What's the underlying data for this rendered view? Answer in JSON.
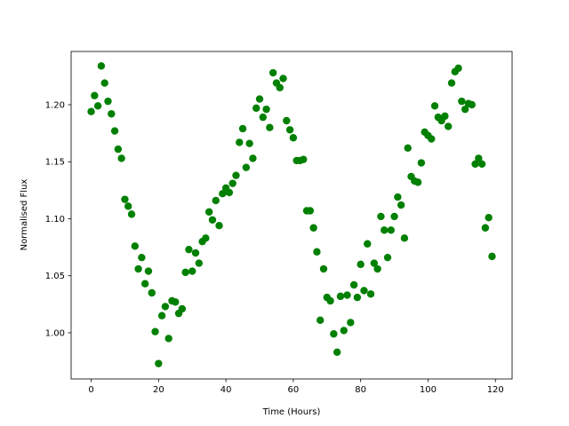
{
  "chart_data": {
    "type": "scatter",
    "xlabel": "Time (Hours)",
    "ylabel": "Normalised Flux",
    "color": "#008000",
    "x": [
      0,
      1,
      2,
      3,
      4,
      5,
      6,
      7,
      8,
      9,
      10,
      11,
      12,
      13,
      14,
      15,
      16,
      17,
      18,
      19,
      20,
      21,
      22,
      23,
      24,
      25,
      26,
      27,
      28,
      29,
      30,
      31,
      32,
      33,
      34,
      35,
      36,
      37,
      38,
      39,
      40,
      41,
      42,
      43,
      44,
      45,
      46,
      47,
      48,
      49,
      50,
      51,
      52,
      53,
      54,
      55,
      56,
      57,
      58,
      59,
      60,
      61,
      62,
      63,
      64,
      65,
      66,
      67,
      68,
      69,
      70,
      71,
      72,
      73,
      74,
      75,
      76,
      77,
      78,
      79,
      80,
      81,
      82,
      83,
      84,
      85,
      86,
      87,
      88,
      89,
      90,
      91,
      92,
      93,
      94,
      95,
      96,
      97,
      98,
      99,
      100,
      101,
      102,
      103,
      104,
      105,
      106,
      107,
      108,
      109,
      110,
      111,
      112,
      113,
      114,
      115,
      116,
      117,
      118,
      119
    ],
    "values": [
      1.194,
      1.208,
      1.199,
      1.234,
      1.219,
      1.203,
      1.192,
      1.177,
      1.161,
      1.153,
      1.117,
      1.111,
      1.104,
      1.076,
      1.056,
      1.066,
      1.043,
      1.054,
      1.035,
      1.001,
      0.973,
      1.015,
      1.023,
      0.995,
      1.028,
      1.027,
      1.017,
      1.021,
      1.053,
      1.073,
      1.054,
      1.07,
      1.061,
      1.08,
      1.083,
      1.106,
      1.099,
      1.116,
      1.094,
      1.122,
      1.127,
      1.123,
      1.131,
      1.138,
      1.167,
      1.179,
      1.145,
      1.166,
      1.153,
      1.197,
      1.205,
      1.189,
      1.196,
      1.18,
      1.228,
      1.219,
      1.215,
      1.223,
      1.186,
      1.178,
      1.171,
      1.151,
      1.151,
      1.152,
      1.107,
      1.107,
      1.092,
      1.071,
      1.011,
      1.056,
      1.031,
      1.028,
      0.999,
      0.983,
      1.032,
      1.002,
      1.033,
      1.009,
      1.042,
      1.031,
      1.06,
      1.037,
      1.078,
      1.034,
      1.061,
      1.056,
      1.102,
      1.09,
      1.066,
      1.09,
      1.102,
      1.119,
      1.112,
      1.083,
      1.162,
      1.137,
      1.133,
      1.132,
      1.149,
      1.176,
      1.173,
      1.17,
      1.199,
      1.189,
      1.186,
      1.19,
      1.181,
      1.219,
      1.229,
      1.232,
      1.203,
      1.196,
      1.201,
      1.2,
      1.148,
      1.153,
      1.148,
      1.092,
      1.101,
      1.067
    ],
    "xlim": [
      -5.95,
      124.95
    ],
    "ylim": [
      0.9595,
      1.2467
    ],
    "xticks": [
      0,
      20,
      40,
      60,
      80,
      100,
      120
    ],
    "yticks": [
      {
        "value": 1.0,
        "label": "1.00"
      },
      {
        "value": 1.05,
        "label": "1.05"
      },
      {
        "value": 1.1,
        "label": "1.10"
      },
      {
        "value": 1.15,
        "label": "1.15"
      },
      {
        "value": 1.2,
        "label": "1.20"
      }
    ],
    "grid": false
  }
}
